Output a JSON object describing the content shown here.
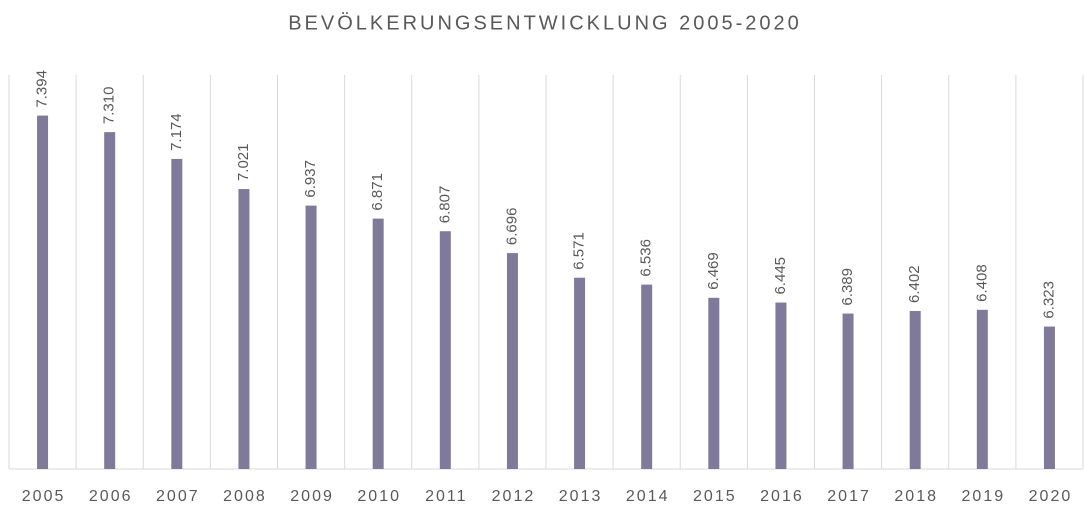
{
  "chart_data": {
    "type": "bar",
    "title": "BEVÖLKERUNGSENTWICKLUNG 2005-2020",
    "categories": [
      "2005",
      "2006",
      "2007",
      "2008",
      "2009",
      "2010",
      "2011",
      "2012",
      "2013",
      "2014",
      "2015",
      "2016",
      "2017",
      "2018",
      "2019",
      "2020"
    ],
    "values": [
      7394,
      7310,
      7174,
      7021,
      6937,
      6871,
      6807,
      6696,
      6571,
      6536,
      6469,
      6445,
      6389,
      6402,
      6408,
      6323
    ],
    "value_labels": [
      "7.394",
      "7.310",
      "7.174",
      "7.021",
      "6.937",
      "6.871",
      "6.807",
      "6.696",
      "6.571",
      "6.536",
      "6.469",
      "6.445",
      "6.389",
      "6.402",
      "6.408",
      "6.323"
    ],
    "color": "#807a9a",
    "ylim": [
      5600,
      7600
    ]
  }
}
